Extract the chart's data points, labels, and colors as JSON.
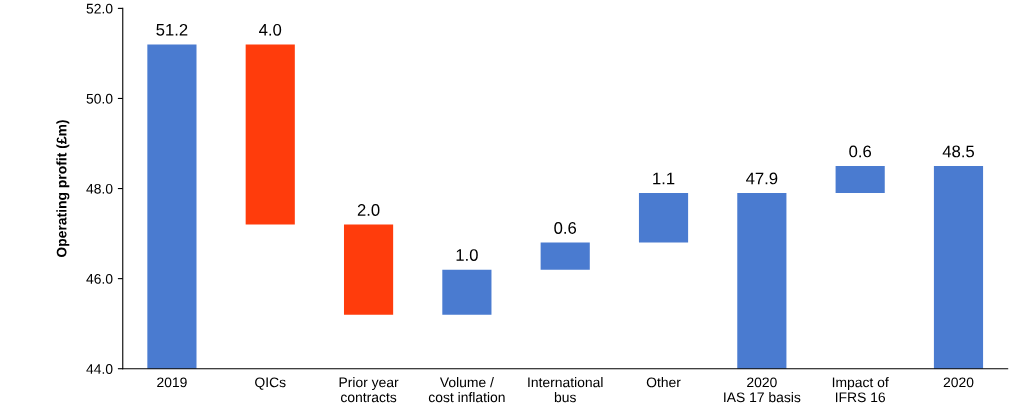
{
  "chart_data": {
    "type": "bar",
    "ylabel": "Operating profit (£m)",
    "categories": [
      "2019",
      "QICs",
      "Prior year\ncontracts",
      "Volume /\ncost inflation",
      "International\nbus",
      "Other",
      "2020\nIAS 17 basis",
      "Impact of\nIFRS 16",
      "2020"
    ],
    "values": [
      51.2,
      4.0,
      2.0,
      1.0,
      0.6,
      1.1,
      47.9,
      0.6,
      48.5
    ],
    "base": [
      null,
      47.2,
      45.2,
      45.2,
      46.2,
      46.8,
      null,
      47.9,
      null
    ],
    "colors": [
      "#4a7bd0",
      "#ff3c0c",
      "#ff3c0c",
      "#4a7bd0",
      "#4a7bd0",
      "#4a7bd0",
      "#4a7bd0",
      "#4a7bd0",
      "#4a7bd0"
    ],
    "value_labels": [
      "51.2",
      "4.0",
      "2.0",
      "1.0",
      "0.6",
      "1.1",
      "47.9",
      "0.6",
      "48.5"
    ],
    "ylim": [
      44,
      52
    ],
    "yticks": [
      {
        "value": 44,
        "label": "44.0"
      },
      {
        "value": 46,
        "label": "46.0"
      },
      {
        "value": 48,
        "label": "48.0"
      },
      {
        "value": 50,
        "label": "50.0"
      },
      {
        "value": 52,
        "label": "52.0"
      }
    ],
    "grid": false,
    "legend": false
  }
}
